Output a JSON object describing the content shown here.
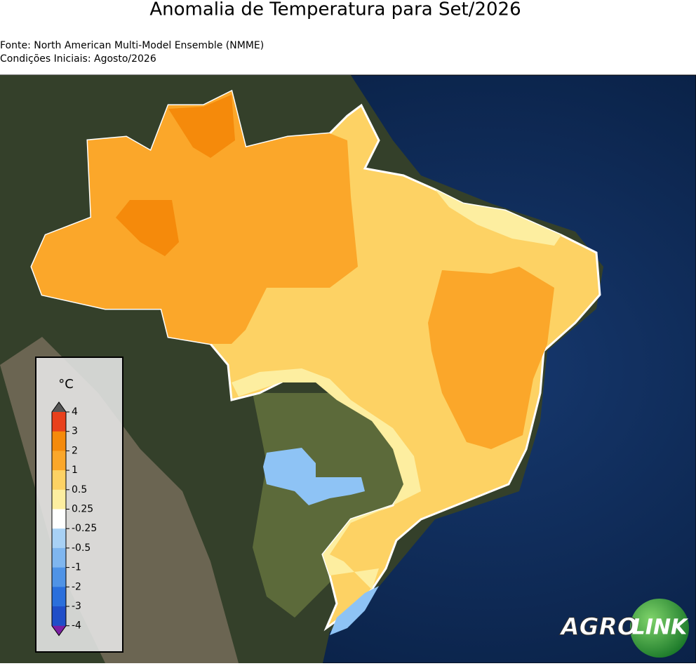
{
  "header": {
    "title": "Anomalia de Temperatura para Set/2026",
    "source": "Fonte: North American Multi-Model Ensemble (NMME)",
    "initial": "Condições Iniciais: Agosto/2026"
  },
  "legend": {
    "unit": "°C",
    "ticks": [
      "4",
      "3",
      "2",
      "1",
      "0.5",
      "0.25",
      "-0.25",
      "-0.5",
      "-1",
      "-2",
      "-3",
      "-4"
    ],
    "colors": [
      "#e8401c",
      "#f58a0b",
      "#fba72a",
      "#fdd264",
      "#fdeea0",
      "#ffffff",
      "#a8d1f5",
      "#7fb6ef",
      "#4f93e6",
      "#2a6fdc",
      "#1f4ec8"
    ],
    "over_color": "#555555",
    "under_color": "#7b1fa2"
  },
  "logo": {
    "left": "AGRO",
    "right": "LINK"
  }
}
